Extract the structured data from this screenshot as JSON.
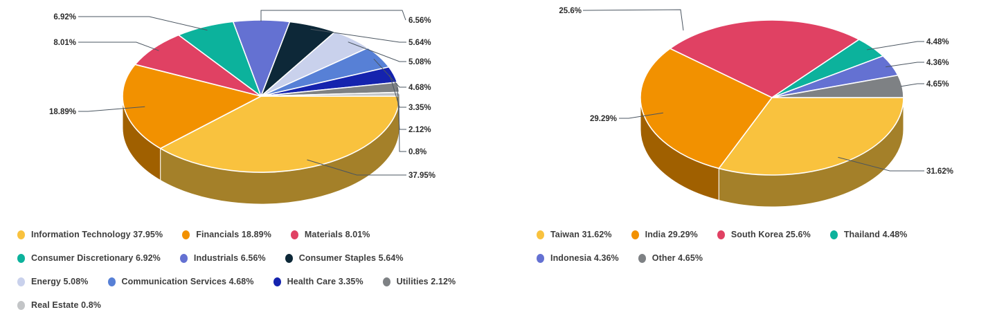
{
  "page": {
    "background": "#ffffff"
  },
  "chart_data": [
    {
      "type": "pie",
      "title": "",
      "style": "3d-pie",
      "legend_position": "bottom",
      "labels": [
        "Information Technology",
        "Financials",
        "Materials",
        "Consumer Discretionary",
        "Industrials",
        "Consumer Staples",
        "Energy",
        "Communication Services",
        "Health Care",
        "Utilities",
        "Real Estate"
      ],
      "values": [
        37.95,
        18.89,
        8.01,
        6.92,
        6.56,
        5.64,
        5.08,
        4.68,
        3.35,
        2.12,
        0.8
      ],
      "pct_labels": [
        "37.95%",
        "18.89%",
        "8.01%",
        "6.92%",
        "6.56%",
        "5.64%",
        "5.08%",
        "4.68%",
        "3.35%",
        "2.12%",
        "0.8%"
      ],
      "colors": [
        "#F9C23E",
        "#F29100",
        "#E04163",
        "#0CB29C",
        "#6471D2",
        "#0D2838",
        "#C9D1EC",
        "#5780D6",
        "#1523AE",
        "#7E8184",
        "#C3C5C7"
      ],
      "legend_rows": [
        3,
        3,
        4,
        1
      ]
    },
    {
      "type": "pie",
      "title": "",
      "style": "3d-pie",
      "legend_position": "bottom",
      "labels": [
        "Taiwan",
        "India",
        "South Korea",
        "Thailand",
        "Indonesia",
        "Other"
      ],
      "values": [
        31.62,
        29.29,
        25.6,
        4.48,
        4.36,
        4.65
      ],
      "pct_labels": [
        "31.62%",
        "29.29%",
        "25.6%",
        "4.48%",
        "4.36%",
        "4.65%"
      ],
      "colors": [
        "#F9C23E",
        "#F29100",
        "#E04163",
        "#0CB29C",
        "#6471D2",
        "#7E8184"
      ],
      "legend_rows": [
        4,
        2
      ]
    }
  ],
  "theme": {
    "connector_color": "#4a5560",
    "label_color": "#2b2b2b",
    "legend_text_color": "#3d3d3d",
    "separator_color": "#ffffff"
  }
}
